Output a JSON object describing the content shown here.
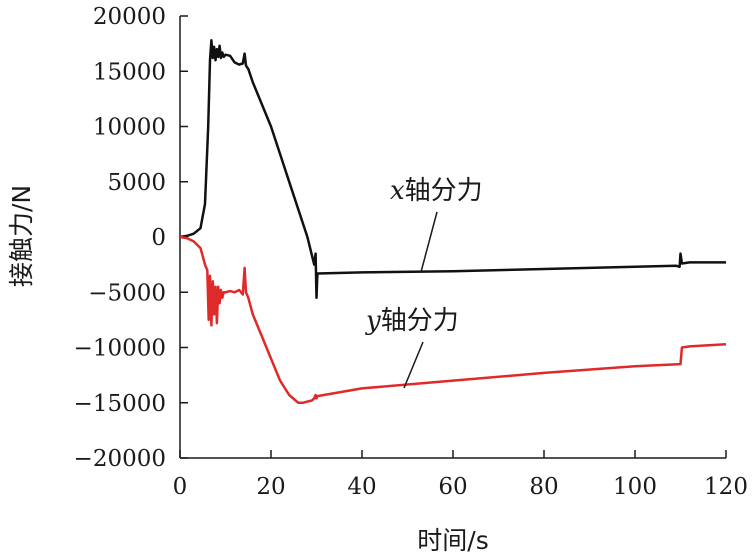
{
  "chart_data": {
    "type": "line",
    "xlabel": "时间/s",
    "ylabel": "接触力/N",
    "xlim": [
      0,
      120
    ],
    "ylim": [
      -20000,
      20000
    ],
    "xticks": [
      0,
      20,
      40,
      60,
      80,
      100,
      120
    ],
    "yticks": [
      20000,
      15000,
      10000,
      5000,
      0,
      -5000,
      -10000,
      -15000,
      -20000
    ],
    "grid": false,
    "legend": "annotations near lines",
    "series": [
      {
        "name": "x轴分力",
        "name_var": "x",
        "name_rest": "轴分力",
        "color": "#111111",
        "x": [
          0,
          1.5,
          3,
          4.5,
          5.5,
          6.2,
          6.6,
          6.9,
          7.2,
          7.5,
          7.8,
          8.1,
          8.4,
          8.7,
          9.0,
          9.3,
          9.6,
          10,
          11,
          12,
          13,
          13.8,
          14.2,
          14.5,
          15,
          16,
          18,
          20,
          22,
          24,
          26,
          28,
          29.5,
          29.8,
          30,
          30.2,
          40,
          60,
          80,
          100,
          109,
          109.8,
          110,
          110.3,
          112,
          120
        ],
        "y": [
          0,
          100,
          300,
          800,
          3000,
          10000,
          16000,
          17800,
          16200,
          17200,
          16000,
          17000,
          16300,
          17300,
          16200,
          16700,
          16300,
          16500,
          16400,
          15800,
          15600,
          15700,
          16600,
          15500,
          15200,
          14000,
          12000,
          10000,
          7500,
          5000,
          2500,
          0,
          -2500,
          -1500,
          -5500,
          -3300,
          -3200,
          -3100,
          -2900,
          -2700,
          -2600,
          -2700,
          -1500,
          -2400,
          -2300,
          -2300
        ]
      },
      {
        "name": "y轴分力",
        "name_var": "y",
        "name_rest": "轴分力",
        "color": "#e02a2a",
        "x": [
          0,
          1.5,
          3,
          4.5,
          5.5,
          6.0,
          6.3,
          6.6,
          6.9,
          7.2,
          7.5,
          7.8,
          8.1,
          8.4,
          8.7,
          9.0,
          9.3,
          9.6,
          10,
          11,
          12,
          13,
          13.8,
          14.2,
          14.5,
          15,
          16,
          18,
          20,
          22,
          24,
          26,
          27,
          28,
          29,
          29.5,
          29.8,
          30,
          30.2,
          40,
          60,
          80,
          100,
          110,
          110.3,
          112,
          120
        ],
        "y": [
          0,
          -100,
          -400,
          -1000,
          -2500,
          -3000,
          -7500,
          -3500,
          -8000,
          -4000,
          -7000,
          -4500,
          -7800,
          -4500,
          -6000,
          -4800,
          -5500,
          -5000,
          -5000,
          -4900,
          -5000,
          -4800,
          -5200,
          -2800,
          -5000,
          -5500,
          -7000,
          -9000,
          -11000,
          -13000,
          -14300,
          -15000,
          -15000,
          -14900,
          -14800,
          -14600,
          -14300,
          -14600,
          -14400,
          -13700,
          -13000,
          -12300,
          -11700,
          -11500,
          -10000,
          -9900,
          -9700
        ]
      }
    ]
  }
}
